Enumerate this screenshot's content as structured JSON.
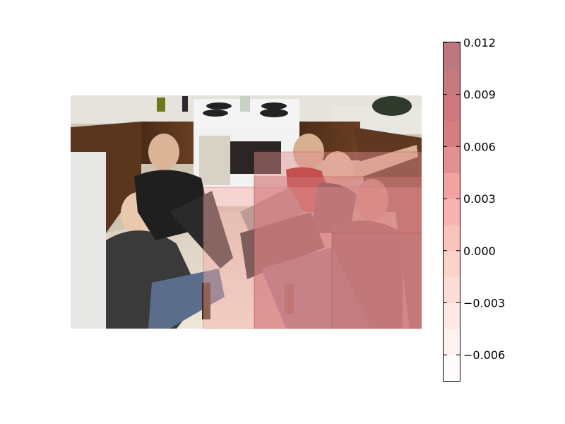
{
  "chart_data": {
    "type": "heatmap",
    "title": "",
    "xlabel": "",
    "ylabel": "",
    "background_photo": "kitchen-group-photo",
    "overlay": {
      "colormap": "Reds",
      "alpha": 0.45,
      "scale": {
        "min": -0.0075,
        "max": 0.012
      },
      "regions": [
        {
          "name": "lower-middle-band",
          "value": 0.003
        },
        {
          "name": "center-right-block",
          "value": 0.0055
        },
        {
          "name": "right-people-block",
          "value": 0.0075
        },
        {
          "name": "bottom-right-block",
          "value": 0.01
        }
      ]
    },
    "colorbar": {
      "levels": [
        -0.0075,
        -0.006,
        -0.0045,
        -0.003,
        -0.0015,
        0.0,
        0.0015,
        0.003,
        0.0045,
        0.006,
        0.0075,
        0.009,
        0.0105,
        0.012
      ],
      "ticks": [
        {
          "value": -0.006,
          "label": "−0.006"
        },
        {
          "value": -0.003,
          "label": "−0.003"
        },
        {
          "value": 0.0,
          "label": "0.000"
        },
        {
          "value": 0.003,
          "label": "0.003"
        },
        {
          "value": 0.006,
          "label": "0.006"
        },
        {
          "value": 0.009,
          "label": "0.009"
        },
        {
          "value": 0.012,
          "label": "0.012"
        }
      ]
    }
  }
}
